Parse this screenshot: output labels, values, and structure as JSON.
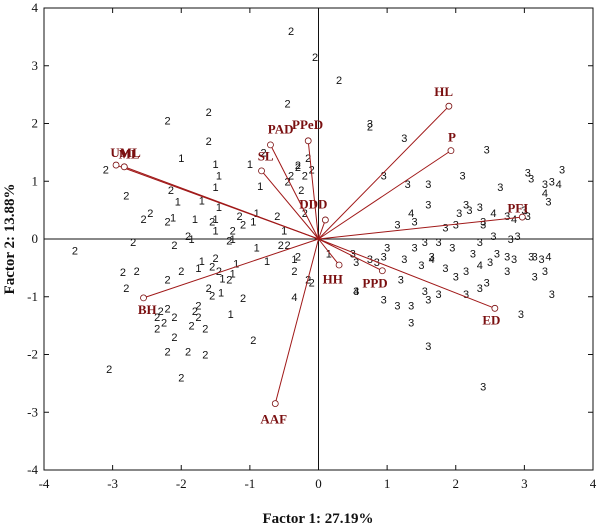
{
  "chart_data": {
    "type": "scatter",
    "xlabel": "Factor 1: 27.19%",
    "ylabel": "Factor 2: 13.88%",
    "xlim": [
      -4,
      4
    ],
    "ylim": [
      -4,
      4
    ],
    "xticks": [
      "-4",
      "-3",
      "-2",
      "-1",
      "0",
      "1",
      "2",
      "3",
      "4"
    ],
    "yticks": [
      "4",
      "3",
      "2",
      "1",
      "0",
      "-1",
      "-2",
      "-3",
      "-4"
    ],
    "grid": false,
    "reference_lines": [
      0,
      0
    ],
    "vector_color": "#a01818",
    "label_color": "#7a0f10",
    "vectors": [
      {
        "name": "HL",
        "x": 1.9,
        "y": 2.3
      },
      {
        "name": "P",
        "x": 1.93,
        "y": 1.53
      },
      {
        "name": "PFI",
        "x": 2.97,
        "y": 0.38
      },
      {
        "name": "ED",
        "x": 2.57,
        "y": -1.2
      },
      {
        "name": "PPD",
        "x": 0.93,
        "y": -0.55
      },
      {
        "name": "HH",
        "x": 0.3,
        "y": -0.45
      },
      {
        "name": "DDD",
        "x": 0.1,
        "y": 0.33
      },
      {
        "name": "AAF",
        "x": -0.63,
        "y": -2.85
      },
      {
        "name": "BH",
        "x": -2.55,
        "y": -1.02
      },
      {
        "name": "UML",
        "x": -2.95,
        "y": 1.28
      },
      {
        "name": "ML",
        "x": -2.83,
        "y": 1.25
      },
      {
        "name": "SL",
        "x": -0.83,
        "y": 1.18
      },
      {
        "name": "PAD",
        "x": -0.7,
        "y": 1.63
      },
      {
        "name": "PPeD",
        "x": -0.15,
        "y": 1.7
      }
    ],
    "series": [
      {
        "name": "1",
        "points": [
          [
            -1.5,
            1.3
          ],
          [
            -2.0,
            1.4
          ],
          [
            -1.0,
            1.3
          ],
          [
            -0.85,
            0.92
          ],
          [
            -1.5,
            0.9
          ],
          [
            -2.05,
            0.65
          ],
          [
            -1.7,
            0.67
          ],
          [
            -2.12,
            0.37
          ],
          [
            -1.8,
            0.35
          ],
          [
            -0.9,
            0.45
          ],
          [
            -0.95,
            0.3
          ],
          [
            -1.5,
            0.35
          ],
          [
            -1.45,
            0.55
          ],
          [
            -1.5,
            0.15
          ],
          [
            -1.85,
            0.0
          ],
          [
            -1.25,
            0.0
          ],
          [
            -1.7,
            -0.38
          ],
          [
            -1.75,
            -0.5
          ],
          [
            -1.25,
            -0.6
          ],
          [
            -1.42,
            -0.93
          ],
          [
            -1.28,
            -1.3
          ],
          [
            -1.45,
            1.1
          ],
          [
            -1.4,
            -0.68
          ],
          [
            -1.2,
            -0.42
          ],
          [
            -0.75,
            -0.38
          ],
          [
            -0.9,
            -0.15
          ],
          [
            -0.5,
            0.15
          ],
          [
            -0.35,
            -0.35
          ],
          [
            0.15,
            -0.25
          ]
        ]
      },
      {
        "name": "2",
        "points": [
          [
            -0.4,
            3.6
          ],
          [
            -0.05,
            3.15
          ],
          [
            0.3,
            2.75
          ],
          [
            0.75,
            1.95
          ],
          [
            -0.45,
            2.35
          ],
          [
            -1.6,
            2.2
          ],
          [
            -2.2,
            2.05
          ],
          [
            -1.6,
            1.7
          ],
          [
            -3.1,
            1.2
          ],
          [
            -2.8,
            0.75
          ],
          [
            -2.15,
            0.85
          ],
          [
            -2.2,
            0.3
          ],
          [
            -1.55,
            0.3
          ],
          [
            -1.15,
            0.4
          ],
          [
            -1.1,
            0.25
          ],
          [
            -1.25,
            0.15
          ],
          [
            -2.55,
            0.35
          ],
          [
            -2.45,
            0.45
          ],
          [
            -1.9,
            0.05
          ],
          [
            -1.3,
            -0.03
          ],
          [
            -1.5,
            -0.33
          ],
          [
            -2.7,
            -0.05
          ],
          [
            -2.1,
            -0.1
          ],
          [
            -3.55,
            -0.2
          ],
          [
            -2.85,
            -0.57
          ],
          [
            -2.65,
            -0.55
          ],
          [
            -2.8,
            -0.85
          ],
          [
            -2.2,
            -0.7
          ],
          [
            -2.0,
            -0.55
          ],
          [
            -1.55,
            -0.48
          ],
          [
            -1.45,
            -0.55
          ],
          [
            -1.3,
            -0.7
          ],
          [
            -1.1,
            -1.02
          ],
          [
            -1.6,
            -0.85
          ],
          [
            -1.55,
            -0.98
          ],
          [
            -1.75,
            -1.15
          ],
          [
            -1.8,
            -1.25
          ],
          [
            -2.2,
            -1.2
          ],
          [
            -2.3,
            -1.25
          ],
          [
            -2.1,
            -1.35
          ],
          [
            -2.25,
            -1.45
          ],
          [
            -2.35,
            -1.55
          ],
          [
            -2.35,
            -1.35
          ],
          [
            -1.75,
            -1.35
          ],
          [
            -1.85,
            -1.5
          ],
          [
            -1.65,
            -1.55
          ],
          [
            -2.1,
            -1.7
          ],
          [
            -2.2,
            -1.95
          ],
          [
            -1.9,
            -1.95
          ],
          [
            -1.65,
            -2.0
          ],
          [
            -2.0,
            -2.4
          ],
          [
            -3.05,
            -2.25
          ],
          [
            -0.95,
            -1.75
          ],
          [
            -0.45,
            -0.1
          ],
          [
            -0.55,
            -0.1
          ],
          [
            -0.4,
            1.1
          ],
          [
            -0.2,
            1.1
          ],
          [
            -0.1,
            1.2
          ],
          [
            -0.45,
            1.0
          ],
          [
            -0.25,
            0.85
          ],
          [
            -0.3,
            1.25
          ],
          [
            -0.15,
            1.4
          ],
          [
            -0.3,
            1.28
          ],
          [
            -0.8,
            1.5
          ],
          [
            -0.6,
            0.4
          ],
          [
            -0.2,
            0.45
          ],
          [
            -0.3,
            -0.3
          ],
          [
            -0.15,
            -0.7
          ],
          [
            -0.1,
            -0.75
          ],
          [
            -0.35,
            -0.55
          ]
        ]
      },
      {
        "name": "3",
        "points": [
          [
            0.75,
            2.0
          ],
          [
            1.25,
            1.75
          ],
          [
            2.45,
            1.55
          ],
          [
            0.95,
            1.1
          ],
          [
            1.3,
            0.95
          ],
          [
            1.6,
            0.6
          ],
          [
            1.6,
            0.95
          ],
          [
            2.1,
            1.1
          ],
          [
            2.65,
            0.9
          ],
          [
            2.4,
            0.3
          ],
          [
            2.0,
            0.25
          ],
          [
            2.15,
            0.6
          ],
          [
            2.35,
            0.55
          ],
          [
            2.05,
            0.45
          ],
          [
            2.2,
            0.5
          ],
          [
            1.4,
            0.3
          ],
          [
            1.15,
            0.25
          ],
          [
            3.1,
            1.05
          ],
          [
            3.4,
            1.0
          ],
          [
            3.3,
            0.95
          ],
          [
            3.05,
            1.15
          ],
          [
            3.55,
            1.2
          ],
          [
            3.35,
            0.65
          ],
          [
            3.0,
            0.5
          ],
          [
            3.05,
            0.4
          ],
          [
            2.75,
            0.4
          ],
          [
            2.4,
            0.25
          ],
          [
            1.85,
            0.2
          ],
          [
            2.55,
            0.05
          ],
          [
            2.35,
            -0.05
          ],
          [
            1.75,
            -0.05
          ],
          [
            1.55,
            -0.05
          ],
          [
            1.4,
            -0.15
          ],
          [
            1.65,
            -0.3
          ],
          [
            1.25,
            -0.35
          ],
          [
            1.0,
            -0.15
          ],
          [
            0.95,
            -0.3
          ],
          [
            0.55,
            -0.4
          ],
          [
            0.5,
            -0.25
          ],
          [
            0.75,
            -0.35
          ],
          [
            0.85,
            -0.4
          ],
          [
            1.5,
            -0.45
          ],
          [
            1.85,
            -0.5
          ],
          [
            2.15,
            -0.55
          ],
          [
            2.0,
            -0.65
          ],
          [
            2.35,
            -0.85
          ],
          [
            2.45,
            -0.75
          ],
          [
            2.75,
            -0.3
          ],
          [
            2.85,
            -0.35
          ],
          [
            3.1,
            -0.3
          ],
          [
            2.9,
            0.05
          ],
          [
            2.8,
            0.0
          ],
          [
            3.25,
            -0.35
          ],
          [
            3.3,
            -0.55
          ],
          [
            3.15,
            -0.65
          ],
          [
            1.2,
            -0.7
          ],
          [
            1.55,
            -0.9
          ],
          [
            1.75,
            -0.95
          ],
          [
            2.15,
            -0.95
          ],
          [
            1.6,
            -1.05
          ],
          [
            1.35,
            -1.15
          ],
          [
            0.95,
            -1.05
          ],
          [
            1.15,
            -1.15
          ],
          [
            1.35,
            -1.45
          ],
          [
            0.55,
            -0.9
          ],
          [
            2.95,
            -1.3
          ],
          [
            1.6,
            -1.85
          ],
          [
            2.4,
            -2.55
          ],
          [
            3.4,
            -0.95
          ],
          [
            3.15,
            -0.3
          ],
          [
            2.75,
            -0.55
          ],
          [
            2.5,
            -0.4
          ],
          [
            1.95,
            -0.15
          ],
          [
            2.25,
            -0.25
          ],
          [
            2.6,
            -0.25
          ]
        ]
      },
      {
        "name": "4",
        "points": [
          [
            1.35,
            0.45
          ],
          [
            3.3,
            0.8
          ],
          [
            3.5,
            0.95
          ],
          [
            2.55,
            0.45
          ],
          [
            2.85,
            0.35
          ],
          [
            3.35,
            -0.3
          ],
          [
            1.65,
            -0.35
          ],
          [
            2.35,
            -0.45
          ],
          [
            0.55,
            -0.9
          ],
          [
            -0.35,
            -1.0
          ]
        ]
      }
    ]
  }
}
